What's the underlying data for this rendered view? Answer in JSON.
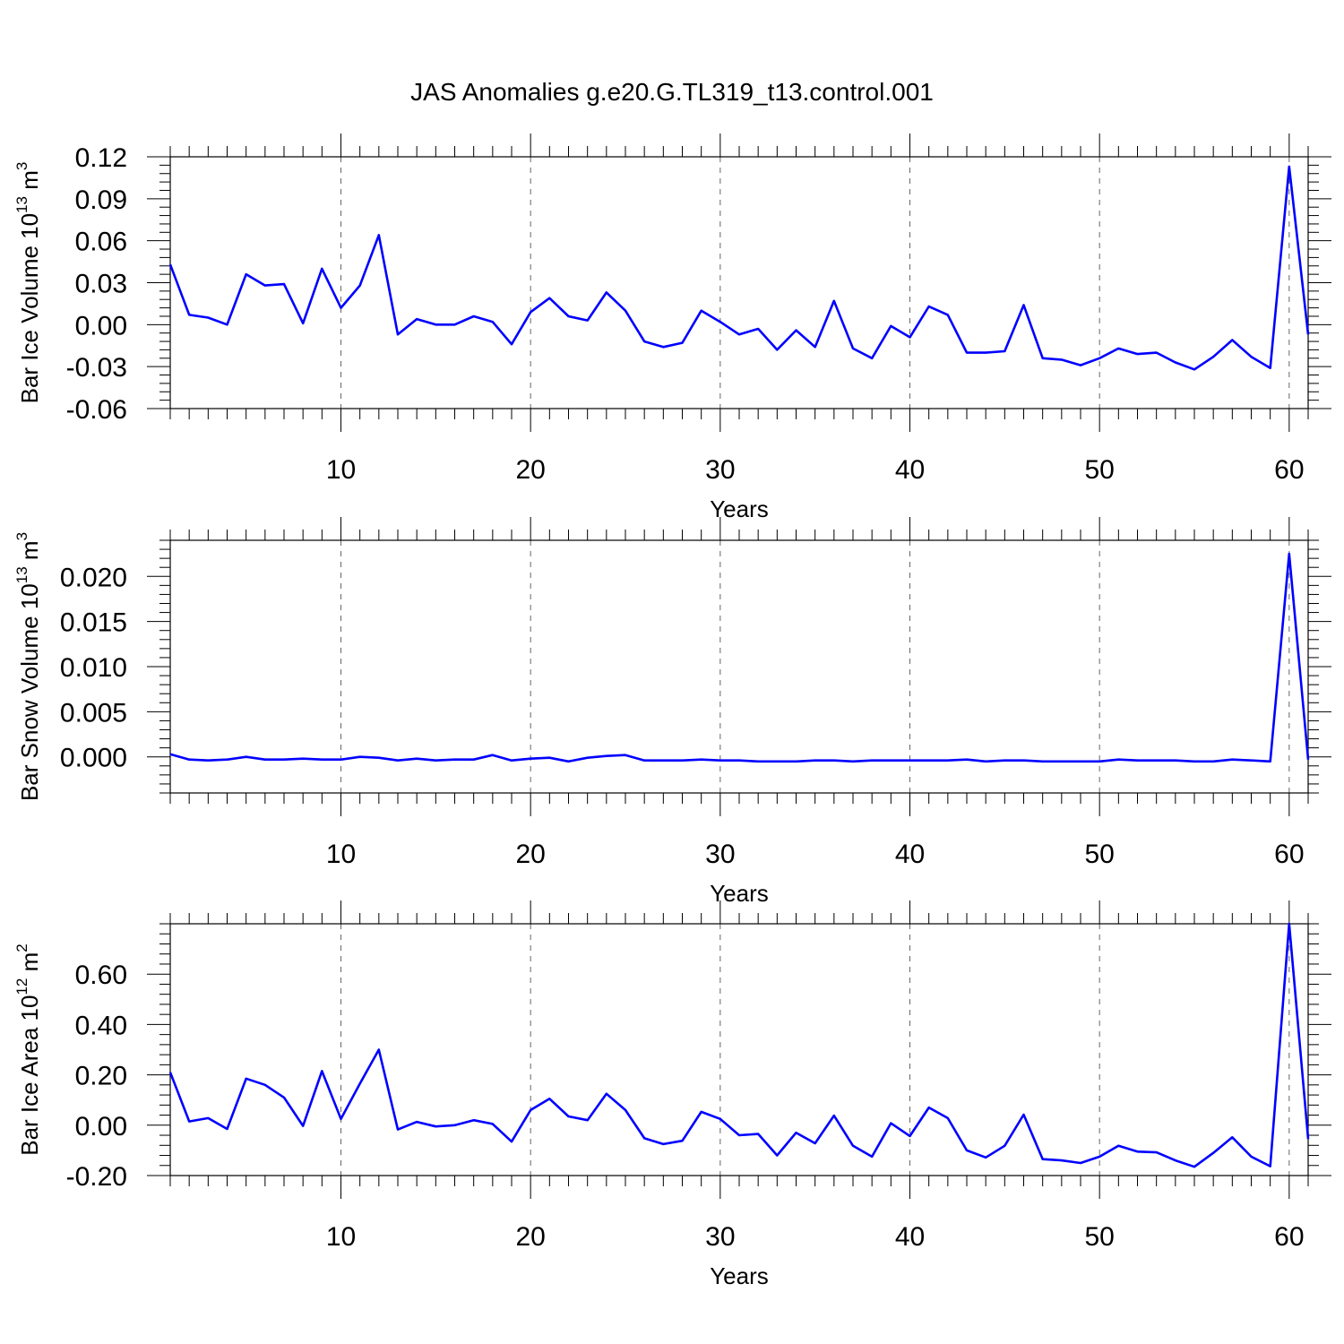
{
  "figure": {
    "title": "JAS Anomalies g.e20.G.TL319_t13.control.001",
    "line_color": "#0000ff"
  },
  "chart_data": [
    {
      "type": "line",
      "xlabel": "Years",
      "ylabel_main": "Bar Ice Volume 10",
      "ylabel_exp": "13",
      "ylabel_unit": " m",
      "ylabel_unit_exp": "3",
      "xlim": [
        1,
        61
      ],
      "ylim": [
        -0.06,
        0.12
      ],
      "xticks": [
        10,
        20,
        30,
        40,
        50,
        60
      ],
      "xtick_labels": [
        "10",
        "20",
        "30",
        "40",
        "50",
        "60"
      ],
      "yticks": [
        -0.06,
        -0.03,
        0.0,
        0.03,
        0.06,
        0.09,
        0.12
      ],
      "ytick_labels": [
        "-0.06",
        "-0.03",
        "0.00",
        "0.03",
        "0.06",
        "0.09",
        "0.12"
      ],
      "grid": "vertical dashed at major x ticks",
      "x": [
        1,
        2,
        3,
        4,
        5,
        6,
        7,
        8,
        9,
        10,
        11,
        12,
        13,
        14,
        15,
        16,
        17,
        18,
        19,
        20,
        21,
        22,
        23,
        24,
        25,
        26,
        27,
        28,
        29,
        30,
        31,
        32,
        33,
        34,
        35,
        36,
        37,
        38,
        39,
        40,
        41,
        42,
        43,
        44,
        45,
        46,
        47,
        48,
        49,
        50,
        51,
        52,
        53,
        54,
        55,
        56,
        57,
        58,
        59,
        60,
        61
      ],
      "y": [
        0.043,
        0.007,
        0.005,
        0.0,
        0.036,
        0.028,
        0.029,
        0.001,
        0.04,
        0.012,
        0.028,
        0.064,
        -0.007,
        0.004,
        0.0,
        0.0,
        0.006,
        0.002,
        -0.014,
        0.009,
        0.019,
        0.006,
        0.003,
        0.023,
        0.01,
        -0.012,
        -0.016,
        -0.013,
        0.01,
        0.002,
        -0.007,
        -0.003,
        -0.018,
        -0.004,
        -0.016,
        0.017,
        -0.017,
        -0.024,
        -0.001,
        -0.009,
        0.013,
        0.007,
        -0.02,
        -0.02,
        -0.019,
        0.014,
        -0.024,
        -0.025,
        -0.029,
        -0.024,
        -0.017,
        -0.021,
        -0.02,
        -0.027,
        -0.032,
        -0.023,
        -0.011,
        -0.023,
        -0.031,
        0.113,
        -0.007
      ]
    },
    {
      "type": "line",
      "xlabel": "Years",
      "ylabel_main": "Bar Snow Volume 10",
      "ylabel_exp": "13",
      "ylabel_unit": " m",
      "ylabel_unit_exp": "3",
      "xlim": [
        1,
        61
      ],
      "ylim": [
        -0.004,
        0.024
      ],
      "xticks": [
        10,
        20,
        30,
        40,
        50,
        60
      ],
      "xtick_labels": [
        "10",
        "20",
        "30",
        "40",
        "50",
        "60"
      ],
      "yticks": [
        0.0,
        0.005,
        0.01,
        0.015,
        0.02
      ],
      "ytick_labels": [
        "0.000",
        "0.005",
        "0.010",
        "0.015",
        "0.020"
      ],
      "grid": "vertical dashed at major x ticks",
      "x": [
        1,
        2,
        3,
        4,
        5,
        6,
        7,
        8,
        9,
        10,
        11,
        12,
        13,
        14,
        15,
        16,
        17,
        18,
        19,
        20,
        21,
        22,
        23,
        24,
        25,
        26,
        27,
        28,
        29,
        30,
        31,
        32,
        33,
        34,
        35,
        36,
        37,
        38,
        39,
        40,
        41,
        42,
        43,
        44,
        45,
        46,
        47,
        48,
        49,
        50,
        51,
        52,
        53,
        54,
        55,
        56,
        57,
        58,
        59,
        60,
        61
      ],
      "y": [
        0.0003,
        -0.0003,
        -0.0004,
        -0.0003,
        0.0,
        -0.0003,
        -0.0003,
        -0.0002,
        -0.0003,
        -0.0003,
        0.0,
        -0.0001,
        -0.0004,
        -0.0002,
        -0.0004,
        -0.0003,
        -0.0003,
        0.0002,
        -0.0004,
        -0.0002,
        -0.0001,
        -0.0005,
        -0.0001,
        0.0001,
        0.0002,
        -0.0004,
        -0.0004,
        -0.0004,
        -0.0003,
        -0.0004,
        -0.0004,
        -0.0005,
        -0.0005,
        -0.0005,
        -0.0004,
        -0.0004,
        -0.0005,
        -0.0004,
        -0.0004,
        -0.0004,
        -0.0004,
        -0.0004,
        -0.0003,
        -0.0005,
        -0.0004,
        -0.0004,
        -0.0005,
        -0.0005,
        -0.0005,
        -0.0005,
        -0.0003,
        -0.0004,
        -0.0004,
        -0.0004,
        -0.0005,
        -0.0005,
        -0.0003,
        -0.0004,
        -0.0005,
        0.0225,
        -0.0003
      ]
    },
    {
      "type": "line",
      "xlabel": "Years",
      "ylabel_main": "Bar Ice Area 10",
      "ylabel_exp": "12",
      "ylabel_unit": " m",
      "ylabel_unit_exp": "2",
      "xlim": [
        1,
        61
      ],
      "ylim": [
        -0.2,
        0.8
      ],
      "xticks": [
        10,
        20,
        30,
        40,
        50,
        60
      ],
      "xtick_labels": [
        "10",
        "20",
        "30",
        "40",
        "50",
        "60"
      ],
      "yticks": [
        -0.2,
        0.0,
        0.2,
        0.4,
        0.6
      ],
      "ytick_labels": [
        "-0.20",
        "0.00",
        "0.20",
        "0.40",
        "0.60"
      ],
      "grid": "vertical dashed at major x ticks",
      "x": [
        1,
        2,
        3,
        4,
        5,
        6,
        7,
        8,
        9,
        10,
        11,
        12,
        13,
        14,
        15,
        16,
        17,
        18,
        19,
        20,
        21,
        22,
        23,
        24,
        25,
        26,
        27,
        28,
        29,
        30,
        31,
        32,
        33,
        34,
        35,
        36,
        37,
        38,
        39,
        40,
        41,
        42,
        43,
        44,
        45,
        46,
        47,
        48,
        49,
        50,
        51,
        52,
        53,
        54,
        55,
        56,
        57,
        58,
        59,
        60,
        61
      ],
      "y": [
        0.21,
        0.015,
        0.028,
        -0.015,
        0.185,
        0.16,
        0.11,
        -0.003,
        0.215,
        0.025,
        0.165,
        0.3,
        -0.017,
        0.013,
        -0.005,
        0.0,
        0.02,
        0.005,
        -0.065,
        0.06,
        0.105,
        0.035,
        0.02,
        0.125,
        0.06,
        -0.052,
        -0.075,
        -0.062,
        0.053,
        0.025,
        -0.04,
        -0.035,
        -0.12,
        -0.03,
        -0.072,
        0.038,
        -0.082,
        -0.125,
        0.008,
        -0.043,
        0.07,
        0.028,
        -0.1,
        -0.128,
        -0.082,
        0.042,
        -0.135,
        -0.14,
        -0.15,
        -0.125,
        -0.082,
        -0.105,
        -0.108,
        -0.14,
        -0.165,
        -0.11,
        -0.048,
        -0.125,
        -0.163,
        0.8,
        -0.055
      ]
    }
  ]
}
